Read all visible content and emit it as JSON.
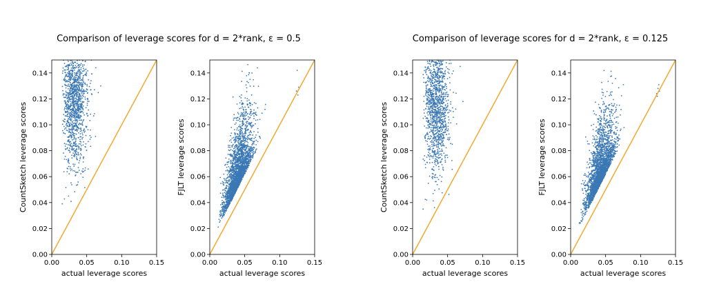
{
  "figure": {
    "titles": [
      "Comparison of leverage scores for d = 2*rank, ε = 0.5",
      "Comparison of leverage scores for d = 2*rank, ε = 0.125"
    ]
  },
  "colors": {
    "points": "#3a78b5",
    "reference_line": "#f0a82e",
    "axes": "#000000"
  },
  "chart_data": [
    {
      "type": "scatter",
      "title": "",
      "xlabel": "actual leverage scores",
      "ylabel": "CountSketch leverage scores",
      "xlim": [
        0,
        0.15
      ],
      "ylim": [
        0,
        0.15
      ],
      "xticks": [
        "0.00",
        "0.05",
        "0.10",
        "0.15"
      ],
      "yticks": [
        "0.00",
        "0.02",
        "0.04",
        "0.06",
        "0.08",
        "0.10",
        "0.12",
        "0.14"
      ],
      "reference_line": "y = x",
      "cloud": {
        "x_range": [
          0.015,
          0.072
        ],
        "y_range": [
          0.038,
          0.15
        ],
        "x_center": 0.032,
        "y_center": 0.118,
        "density": "dense at top, clipped above 0.15"
      },
      "outliers": [
        [
          0.015,
          0.039
        ],
        [
          0.024,
          0.045
        ],
        [
          0.045,
          0.075
        ],
        [
          0.07,
          0.13
        ],
        [
          0.063,
          0.144
        ]
      ]
    },
    {
      "type": "scatter",
      "title": "",
      "xlabel": "actual leverage scores",
      "ylabel": "FJLT leverage scores",
      "xlim": [
        0,
        0.15
      ],
      "ylim": [
        0,
        0.15
      ],
      "xticks": [
        "0.00",
        "0.05",
        "0.10",
        "0.15"
      ],
      "yticks": [
        "0.00",
        "0.02",
        "0.04",
        "0.06",
        "0.08",
        "0.10",
        "0.12",
        "0.14"
      ],
      "reference_line": "y = x",
      "cloud": {
        "x_range": [
          0.012,
          0.085
        ],
        "y_range": [
          0.012,
          0.15
        ],
        "x_center": 0.04,
        "y_center": 0.065,
        "density": "dense band above diagonal"
      },
      "outliers": [
        [
          0.125,
          0.142
        ],
        [
          0.126,
          0.123
        ],
        [
          0.124,
          0.126
        ],
        [
          0.127,
          0.129
        ]
      ]
    },
    {
      "type": "scatter",
      "title": "",
      "xlabel": "actual leverage scores",
      "ylabel": "CountSketch leverage scores",
      "xlim": [
        0,
        0.15
      ],
      "ylim": [
        0,
        0.15
      ],
      "xticks": [
        "0.00",
        "0.05",
        "0.10",
        "0.15"
      ],
      "yticks": [
        "0.00",
        "0.02",
        "0.04",
        "0.06",
        "0.08",
        "0.10",
        "0.12",
        "0.14"
      ],
      "reference_line": "y = x",
      "cloud": {
        "x_range": [
          0.015,
          0.072
        ],
        "y_range": [
          0.035,
          0.15
        ],
        "x_center": 0.033,
        "y_center": 0.115,
        "density": "dense at top, clipped above 0.15"
      },
      "outliers": [
        [
          0.015,
          0.035
        ],
        [
          0.02,
          0.042
        ],
        [
          0.072,
          0.118
        ],
        [
          0.068,
          0.145
        ]
      ]
    },
    {
      "type": "scatter",
      "title": "",
      "xlabel": "actual leverage scores",
      "ylabel": "FJLT leverage scores",
      "xlim": [
        0,
        0.15
      ],
      "ylim": [
        0,
        0.15
      ],
      "xticks": [
        "0.00",
        "0.05",
        "0.10",
        "0.15"
      ],
      "yticks": [
        "0.00",
        "0.02",
        "0.04",
        "0.06",
        "0.08",
        "0.10",
        "0.12",
        "0.14"
      ],
      "reference_line": "y = x",
      "cloud": {
        "x_range": [
          0.012,
          0.085
        ],
        "y_range": [
          0.015,
          0.15
        ],
        "x_center": 0.042,
        "y_center": 0.085,
        "density": "dense band above diagonal"
      },
      "outliers": [
        [
          0.123,
          0.124
        ],
        [
          0.125,
          0.128
        ],
        [
          0.126,
          0.131
        ],
        [
          0.124,
          0.122
        ],
        [
          0.127,
          0.126
        ]
      ]
    }
  ]
}
